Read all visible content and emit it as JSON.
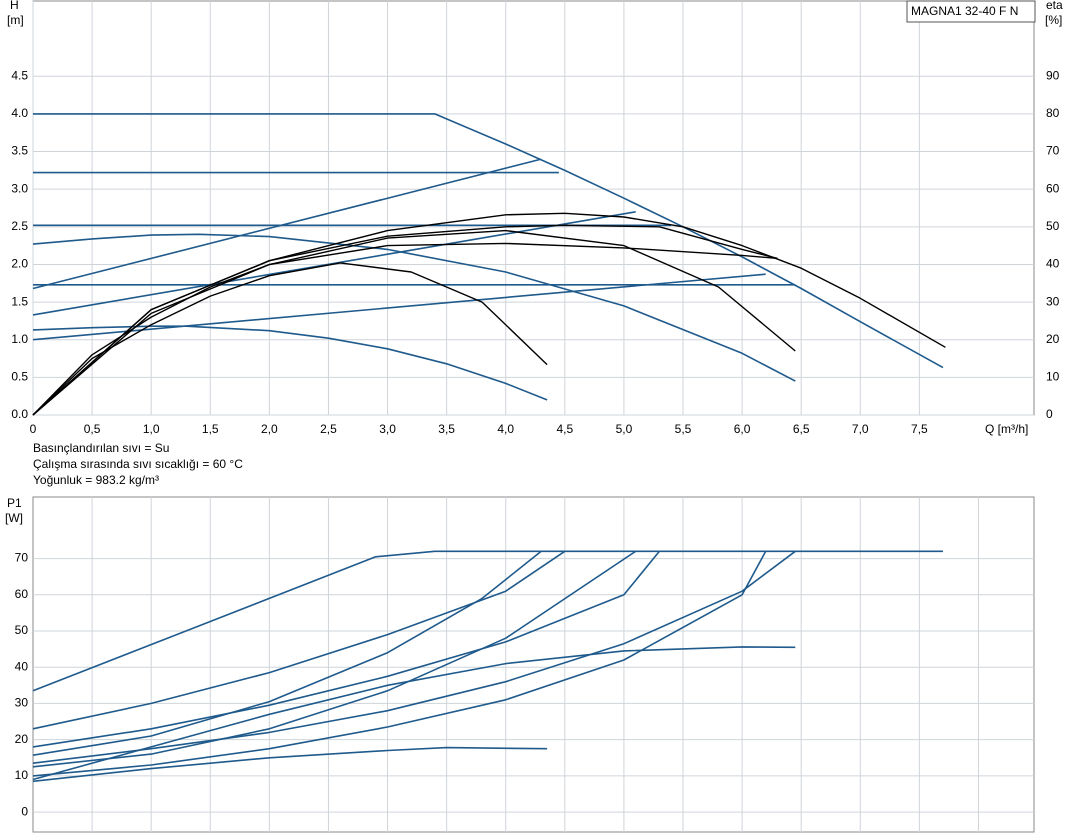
{
  "chart_data": [
    {
      "type": "line",
      "y_label": "H",
      "y_unit": "[m]",
      "y2_label": "eta",
      "y2_unit": "[%]",
      "x_label": "Q [m³/h]",
      "legend_title": "MAGNA1 32-40 F N",
      "notes": [
        "Basınçlandırılan sıvı = Su",
        "Çalışma sırasında sıvı sıcaklığı = 60 °C",
        "Yoğunluk = 983.2 kg/m³"
      ],
      "xlim": [
        0,
        8.47
      ],
      "ylim": [
        0,
        5.5
      ],
      "y2lim": [
        0,
        110
      ],
      "grid": true,
      "xticks": [
        0,
        {
          "value": 0.5,
          "label": "0,5"
        },
        {
          "value": 1,
          "label": "1,0"
        },
        {
          "value": 1.5,
          "label": "1,5"
        },
        {
          "value": 2,
          "label": "2,0"
        },
        {
          "value": 2.5,
          "label": "2,5"
        },
        {
          "value": 3,
          "label": "3,0"
        },
        {
          "value": 3.5,
          "label": "3,5"
        },
        {
          "value": 4,
          "label": "4,0"
        },
        {
          "value": 4.5,
          "label": "4,5"
        },
        {
          "value": 5,
          "label": "5,0"
        },
        {
          "value": 5.5,
          "label": "5,5"
        },
        {
          "value": 6,
          "label": "6,0"
        },
        {
          "value": 6.5,
          "label": "6,5"
        },
        {
          "value": 7,
          "label": "7,0"
        },
        {
          "value": 7.5,
          "label": "7,5"
        }
      ],
      "yticks": [
        {
          "value": 0,
          "label": "0.0"
        },
        0.5,
        {
          "value": 1,
          "label": "1.0"
        },
        1.5,
        {
          "value": 2,
          "label": "2.0"
        },
        2.5,
        {
          "value": 3,
          "label": "3.0"
        },
        3.5,
        {
          "value": 4,
          "label": "4.0"
        },
        4.5
      ],
      "y2ticks": [
        0,
        10,
        20,
        30,
        40,
        50,
        60,
        70,
        80,
        90
      ],
      "series": [
        {
          "color": "#1f5a8c",
          "x": [
            0,
            3.4,
            4.0,
            4.5,
            5.0,
            5.5,
            6.0,
            6.5,
            7.0,
            7.7
          ],
          "values": [
            4.0,
            4.0,
            3.6,
            3.25,
            2.88,
            2.5,
            2.1,
            1.68,
            1.24,
            0.63
          ]
        },
        {
          "color": "#1f5a8c",
          "x": [
            0,
            4.45
          ],
          "values": [
            3.22,
            3.22
          ]
        },
        {
          "color": "#1f5a8c",
          "x": [
            0,
            5.4
          ],
          "values": [
            2.52,
            2.52
          ]
        },
        {
          "color": "#1f5a8c",
          "x": [
            0,
            6.45
          ],
          "values": [
            1.73,
            1.73
          ]
        },
        {
          "color": "#1f5a8c",
          "x": [
            0,
            4.3
          ],
          "values": [
            1.68,
            3.4
          ]
        },
        {
          "color": "#1f5a8c",
          "x": [
            0,
            5.1
          ],
          "values": [
            1.33,
            2.7
          ]
        },
        {
          "color": "#1f5a8c",
          "x": [
            0,
            6.2
          ],
          "values": [
            1.0,
            1.87
          ]
        },
        {
          "color": "#1f5a8c",
          "x": [
            0,
            0.5,
            1.0,
            1.4,
            2.0,
            3.0,
            4.0,
            5.0,
            6.0,
            6.45
          ],
          "values": [
            2.27,
            2.34,
            2.39,
            2.4,
            2.37,
            2.2,
            1.9,
            1.45,
            0.82,
            0.45
          ]
        },
        {
          "color": "#1f5a8c",
          "x": [
            0,
            0.5,
            1.0,
            1.3,
            2.0,
            2.5,
            3.0,
            3.5,
            4.0,
            4.35
          ],
          "values": [
            1.13,
            1.16,
            1.18,
            1.18,
            1.12,
            1.02,
            0.88,
            0.68,
            0.42,
            0.2
          ]
        },
        {
          "color": "#000000",
          "axis": "y2",
          "x": [
            0,
            0.5,
            1.0,
            1.5,
            2.0,
            2.6,
            3.2,
            3.8,
            4.35
          ],
          "values": [
            0,
            15,
            24,
            31.6,
            37,
            40.4,
            38,
            30,
            13.4
          ]
        },
        {
          "color": "#000000",
          "axis": "y2",
          "x": [
            0,
            0.5,
            1.0,
            1.5,
            2.0,
            3.0,
            4.0,
            5.0,
            5.8,
            6.45
          ],
          "values": [
            0,
            16,
            26,
            34,
            40,
            47,
            49,
            45,
            34,
            17
          ]
        },
        {
          "color": "#000000",
          "axis": "y2",
          "x": [
            0,
            1.0,
            2.0,
            3.0,
            4.0,
            5.0,
            6.0,
            6.3
          ],
          "values": [
            0,
            27,
            40,
            45,
            45.6,
            44.4,
            42.4,
            41.6
          ]
        },
        {
          "color": "#000000",
          "axis": "y2",
          "x": [
            0,
            1.0,
            2.0,
            3.0,
            4.0,
            4.5,
            5.3,
            6.0,
            6.3
          ],
          "values": [
            0,
            28,
            41,
            47.5,
            50,
            50.4,
            50,
            44,
            41.6
          ]
        },
        {
          "color": "#000000",
          "axis": "y2",
          "x": [
            0,
            1.0,
            2.0,
            3.0,
            4.0,
            4.5,
            5.0,
            5.5,
            6.0,
            6.5,
            7.0,
            7.72
          ],
          "values": [
            0,
            28,
            41,
            49,
            53.2,
            53.6,
            52.6,
            50,
            45,
            39,
            31,
            18
          ]
        }
      ]
    },
    {
      "type": "line",
      "y_label": "P1",
      "y_unit": "[W]",
      "xlim": [
        0,
        8.47
      ],
      "ylim": [
        -5.5,
        87
      ],
      "grid": true,
      "xgrid": [
        0.5,
        1,
        1.5,
        2,
        2.5,
        3,
        3.5,
        4,
        4.5,
        5,
        5.5,
        6,
        6.5,
        7,
        7.5,
        8
      ],
      "yticks": [
        0,
        10,
        20,
        30,
        40,
        50,
        60,
        70
      ],
      "series": [
        {
          "color": "#1f5a8c",
          "x": [
            0,
            2.9,
            3.4,
            7.7
          ],
          "values": [
            33.5,
            70.5,
            72,
            72
          ]
        },
        {
          "color": "#1f5a8c",
          "x": [
            0,
            1,
            2,
            3,
            4,
            4.5
          ],
          "values": [
            23,
            30,
            38.5,
            49,
            61,
            72
          ]
        },
        {
          "color": "#1f5a8c",
          "x": [
            0,
            1,
            2,
            3,
            4,
            5,
            5.3
          ],
          "values": [
            18,
            23,
            29.5,
            37.5,
            47,
            60,
            72
          ]
        },
        {
          "color": "#1f5a8c",
          "x": [
            0,
            1,
            2,
            3,
            3.8,
            4.3
          ],
          "values": [
            15.7,
            21,
            30.5,
            44,
            59,
            72
          ]
        },
        {
          "color": "#1f5a8c",
          "x": [
            0,
            1,
            2,
            3,
            4,
            5.1
          ],
          "values": [
            12.5,
            16,
            23,
            33.5,
            48,
            72
          ]
        },
        {
          "color": "#1f5a8c",
          "x": [
            0,
            1,
            2,
            3,
            4,
            5,
            6,
            6.45
          ],
          "values": [
            13.5,
            17.5,
            22,
            28,
            36,
            46.5,
            61,
            72
          ]
        },
        {
          "color": "#1f5a8c",
          "x": [
            0,
            1,
            2,
            3,
            4,
            5,
            6,
            6.2
          ],
          "values": [
            10,
            13,
            17.5,
            23.5,
            31,
            42,
            60,
            72
          ]
        },
        {
          "color": "#1f5a8c",
          "x": [
            0,
            1,
            2,
            3,
            4,
            5,
            6,
            6.45
          ],
          "values": [
            9,
            18,
            27,
            35,
            41,
            44.5,
            45.6,
            45.5
          ]
        },
        {
          "color": "#1f5a8c",
          "x": [
            0,
            1,
            2,
            3,
            3.5,
            4.35
          ],
          "values": [
            8.5,
            12,
            15,
            17,
            17.8,
            17.5
          ]
        }
      ]
    }
  ]
}
